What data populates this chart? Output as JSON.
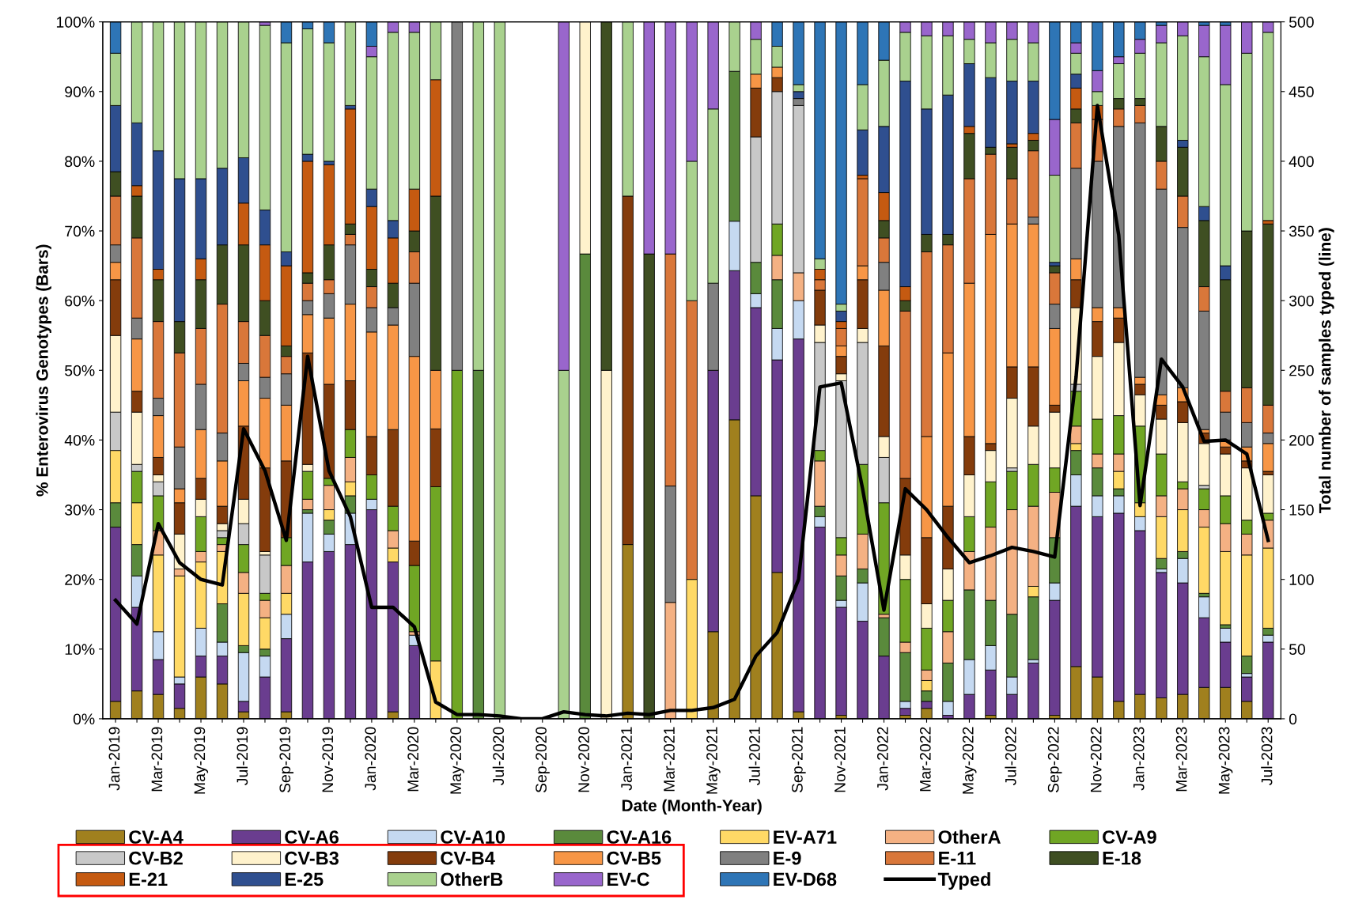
{
  "chart_data": {
    "type": "bar",
    "stacked": true,
    "xlabel": "Date (Month-Year)",
    "ylabel": "% Enterovirus Genotypes (Bars)",
    "y2label": "Total number of samples typed (line)",
    "categories": [
      "Jan-2019",
      null,
      "Mar-2019",
      null,
      "May-2019",
      null,
      "Jul-2019",
      null,
      "Sep-2019",
      null,
      "Nov-2019",
      null,
      "Jan-2020",
      null,
      "Mar-2020",
      null,
      "May-2020",
      null,
      "Jul-2020",
      null,
      "Sep-2020",
      null,
      "Nov-2020",
      null,
      "Jan-2021",
      null,
      "Mar-2021",
      null,
      "May-2021",
      null,
      "Jul-2021",
      null,
      "Sep-2021",
      null,
      "Nov-2021",
      null,
      "Jan-2022",
      null,
      "Mar-2022",
      null,
      "May-2022",
      null,
      "Jul-2022",
      null,
      "Sep-2022",
      null,
      "Nov-2022",
      null,
      "Jan-2023",
      null,
      "Mar-2023",
      null,
      "May-2023",
      null,
      "Jul-2023"
    ],
    "ylim": [
      0,
      100
    ],
    "yticks": [
      {
        "value": 0,
        "label": "0%"
      },
      {
        "value": 10,
        "label": "10%"
      },
      {
        "value": 20,
        "label": "20%"
      },
      {
        "value": 30,
        "label": "30%"
      },
      {
        "value": 40,
        "label": "40%"
      },
      {
        "value": 50,
        "label": "50%"
      },
      {
        "value": 60,
        "label": "60%"
      },
      {
        "value": 70,
        "label": "70%"
      },
      {
        "value": 80,
        "label": "80%"
      },
      {
        "value": 90,
        "label": "90%"
      },
      {
        "value": 100,
        "label": "100%"
      }
    ],
    "y2lim": [
      0,
      500
    ],
    "y2ticks": [
      0,
      50,
      100,
      150,
      200,
      250,
      300,
      350,
      400,
      450,
      500
    ],
    "legend": "bottom",
    "grid": false,
    "series": [
      {
        "name": "CV-A4",
        "color": "#a0801e",
        "values": [
          2.5,
          4,
          3.5,
          1.5,
          6,
          5,
          1,
          0,
          1,
          0,
          0,
          0,
          0,
          1,
          0,
          0,
          0,
          0,
          0,
          0,
          0,
          0,
          0,
          0,
          25,
          0,
          0,
          0,
          12.5,
          42.9,
          32,
          21,
          1,
          0,
          0.5,
          0,
          0,
          0.5,
          1.5,
          0,
          0,
          0.5,
          0,
          0,
          0.5,
          7.5,
          6,
          2.5,
          3.5,
          3,
          3.5,
          4.5,
          4.5,
          2.5,
          0
        ]
      },
      {
        "name": "CV-A6",
        "color": "#6a3d8f",
        "values": [
          25,
          12,
          5,
          3.5,
          3,
          4,
          1.5,
          6,
          10.5,
          22.5,
          24,
          25,
          30,
          21.5,
          10.5,
          0,
          0,
          0,
          0,
          0,
          0,
          0,
          0,
          0,
          0,
          0,
          0,
          0,
          37.5,
          21.4,
          27,
          30.5,
          53.5,
          27.5,
          15.5,
          14,
          9,
          1,
          1,
          0.5,
          3.5,
          6.5,
          3.5,
          8,
          16.5,
          23,
          23,
          27,
          23.5,
          18,
          16,
          10,
          6.5,
          3.5,
          11
        ]
      },
      {
        "name": "CV-A10",
        "color": "#c5d9f1",
        "values": [
          0,
          4.5,
          4,
          1,
          4,
          2,
          7,
          3,
          3.5,
          7,
          2.5,
          4.5,
          1.5,
          0,
          1.5,
          0,
          0,
          0,
          0,
          0,
          0,
          0,
          0,
          0,
          0,
          0,
          0,
          0,
          0,
          7.1,
          2,
          4.5,
          5.5,
          1.5,
          1,
          5.5,
          0,
          1,
          0,
          2,
          5,
          3.5,
          2.5,
          0.5,
          2.5,
          4.5,
          3,
          2.5,
          2,
          0.5,
          3.5,
          3,
          2,
          0.5,
          1
        ]
      },
      {
        "name": "CV-A16",
        "color": "#5a8a3c",
        "values": [
          3.5,
          4.5,
          0,
          0,
          0,
          5.5,
          1,
          1,
          0,
          0.5,
          2,
          2.5,
          0,
          0,
          0,
          0,
          0,
          50,
          0,
          0,
          0,
          0,
          66.7,
          0,
          0,
          0,
          0,
          0,
          0,
          21.5,
          4.5,
          7,
          0,
          1.5,
          3.5,
          2,
          5.5,
          7,
          1.5,
          5.5,
          10,
          6.5,
          9,
          9,
          6.5,
          3.5,
          4,
          1,
          0,
          1.5,
          1,
          0.5,
          0.5,
          2.5,
          1
        ]
      },
      {
        "name": "EV-A71",
        "color": "#ffd966",
        "values": [
          7.5,
          6,
          11,
          14.5,
          9.5,
          7.5,
          7.5,
          4.5,
          3,
          0,
          1.5,
          2,
          0,
          2,
          0,
          8.3,
          0,
          0,
          0,
          0,
          0,
          0,
          0,
          0,
          0,
          0,
          0,
          20,
          0,
          0,
          0,
          0,
          0,
          0,
          0,
          0,
          0,
          0,
          1.5,
          0,
          0,
          0,
          0,
          1.5,
          0,
          1,
          0,
          2.5,
          2,
          6,
          6,
          9.5,
          10.5,
          14.5,
          11.5
        ]
      },
      {
        "name": "OtherA",
        "color": "#f4b183",
        "values": [
          0,
          0,
          3.5,
          1,
          1.5,
          1,
          3,
          2.5,
          4,
          1.5,
          3.5,
          3.5,
          0,
          2.5,
          0.5,
          0,
          0,
          0,
          0,
          0,
          0,
          0,
          0,
          0,
          0,
          0,
          16.7,
          0,
          0,
          0,
          0,
          3.5,
          4,
          6.5,
          3,
          5,
          0.5,
          1.5,
          1.5,
          4.5,
          5.5,
          10.5,
          15,
          11.5,
          6.5,
          2.5,
          2,
          2.5,
          0,
          3,
          3,
          2.5,
          4,
          3,
          4
        ]
      },
      {
        "name": "CV-A9",
        "color": "#70a624",
        "values": [
          0,
          4.5,
          5,
          0,
          5,
          1,
          4,
          1,
          4,
          4,
          1,
          4,
          3.5,
          3.5,
          9.5,
          25,
          50,
          0,
          0,
          0,
          0,
          0,
          0,
          0,
          0,
          0,
          0,
          0,
          0,
          0,
          0,
          4.5,
          0,
          1.5,
          2.5,
          10,
          16,
          9,
          6,
          4.5,
          5,
          6.5,
          5.5,
          6,
          3.5,
          5,
          5,
          5.5,
          11,
          6,
          1,
          3,
          4,
          2,
          1
        ]
      },
      {
        "name": "CV-B2",
        "color": "#c8c8c8",
        "values": [
          5.5,
          1,
          2,
          0,
          0,
          1,
          3,
          5.5,
          0,
          0,
          0,
          0,
          0,
          0,
          0,
          0,
          0,
          0,
          0,
          0,
          0,
          0,
          0,
          0,
          0,
          0,
          0,
          0,
          0,
          0,
          18,
          19,
          24,
          15.5,
          22.5,
          17.5,
          6.5,
          0,
          0,
          0,
          0,
          0,
          0.5,
          0,
          0,
          1,
          0,
          0,
          0,
          0,
          0,
          0.5,
          0,
          0,
          0
        ]
      },
      {
        "name": "CV-B3",
        "color": "#fff2cc",
        "values": [
          11,
          7.5,
          1,
          5,
          2.5,
          1,
          3.5,
          0.5,
          0,
          1,
          0,
          0,
          0,
          0,
          0,
          0,
          0,
          0,
          0,
          0,
          0,
          0,
          33.3,
          50,
          0,
          0,
          0,
          0,
          0,
          0,
          0,
          0,
          0,
          2.5,
          1,
          2,
          3,
          3.5,
          3.5,
          4.5,
          6,
          4.5,
          10,
          5.5,
          8,
          11,
          9,
          10.5,
          4.5,
          5,
          8.5,
          6,
          6,
          7.5,
          5.5
        ]
      },
      {
        "name": "CV-B4",
        "color": "#843c0c",
        "values": [
          8,
          3,
          2.5,
          4.5,
          3,
          2.5,
          10.5,
          12,
          11,
          16,
          13.5,
          7,
          5.5,
          11,
          3.5,
          8.3,
          0,
          0,
          0,
          0,
          0,
          0,
          0,
          0,
          50,
          0,
          0,
          0,
          0,
          0,
          7,
          2,
          0,
          5,
          2.5,
          7,
          13,
          11,
          9.5,
          9,
          5.5,
          1,
          4.5,
          8.5,
          1,
          4,
          5,
          3.5,
          1.5,
          2,
          3,
          1.5,
          1,
          1,
          0.5
        ]
      },
      {
        "name": "CV-B5",
        "color": "#f79646",
        "values": [
          2.5,
          7.5,
          6,
          2,
          7,
          6.5,
          6.5,
          10,
          8,
          5.5,
          9.5,
          11,
          15,
          15,
          26.5,
          8.4,
          0,
          0,
          0,
          0,
          0,
          0,
          0,
          0,
          0,
          0,
          0,
          0,
          0,
          0,
          2,
          1.5,
          0,
          0,
          1.5,
          2,
          8,
          0,
          14.5,
          22,
          22,
          30,
          20.5,
          20.5,
          11,
          3,
          2,
          1.5,
          1,
          1.5,
          2,
          0.5,
          1,
          2,
          4
        ]
      },
      {
        "name": "E-9",
        "color": "#808080",
        "values": [
          2.5,
          3,
          2.5,
          6,
          6.5,
          4,
          2.5,
          3,
          4.5,
          2,
          3.5,
          8.5,
          3.5,
          2.5,
          10.5,
          0,
          50,
          0,
          0,
          0,
          0,
          0,
          0,
          0,
          0,
          0,
          16.7,
          0,
          12.5,
          0,
          0,
          0,
          1,
          0,
          0,
          0,
          4,
          0,
          0,
          0,
          0,
          0,
          0,
          1,
          3.5,
          13,
          21,
          26,
          36.5,
          29.5,
          23,
          17,
          4,
          3.5,
          1.5
        ]
      },
      {
        "name": "E-11",
        "color": "#d9773a",
        "values": [
          7,
          11.5,
          11,
          13.5,
          8,
          18.5,
          6,
          6,
          2.5,
          2.5,
          2,
          1.5,
          3,
          0,
          4.5,
          0,
          0,
          0,
          0,
          0,
          0,
          0,
          0,
          0,
          0,
          0,
          33.3,
          40,
          0,
          0,
          0,
          0,
          0,
          1.5,
          2.5,
          12.5,
          3.5,
          24,
          26.5,
          15.5,
          15,
          11.5,
          6.5,
          9.5,
          4.5,
          6.5,
          6,
          2.5,
          2.5,
          4,
          4.5,
          3.5,
          3,
          5,
          4
        ]
      },
      {
        "name": "E-18",
        "color": "#3f4f22",
        "values": [
          3.5,
          6,
          6,
          4.5,
          7,
          8.5,
          11,
          5,
          1.5,
          1.5,
          5,
          1.5,
          2.5,
          3.5,
          3,
          25,
          0,
          0,
          0,
          0,
          0,
          0,
          0,
          50,
          0,
          66.7,
          0,
          0,
          0,
          0,
          0,
          0,
          0,
          0,
          0,
          0,
          2.5,
          1.5,
          2.5,
          1.5,
          6.5,
          1,
          4.5,
          1.5,
          1,
          2,
          0,
          1.5,
          1,
          5,
          7,
          9.5,
          16,
          22.5,
          26
        ]
      },
      {
        "name": "E-21",
        "color": "#c55a11",
        "values": [
          0,
          1.5,
          1.5,
          0,
          3,
          0,
          6,
          8,
          11.5,
          16,
          11.5,
          16.5,
          9,
          6.5,
          6,
          16.7,
          0,
          0,
          0,
          0,
          0,
          0,
          0,
          0,
          0,
          0,
          0,
          0,
          0,
          0,
          0,
          0,
          0,
          1.5,
          1,
          0.5,
          4,
          2,
          0,
          0,
          1,
          0,
          0.5,
          1,
          0,
          3,
          2,
          0,
          0,
          0,
          0,
          0,
          0,
          0,
          0.5
        ]
      },
      {
        "name": "E-25",
        "color": "#2f4f8f",
        "values": [
          9.5,
          9,
          17,
          20.5,
          11.5,
          11,
          6.5,
          5,
          2,
          1,
          0.5,
          0.5,
          2.5,
          2.5,
          0,
          0,
          0,
          0,
          0,
          0,
          0,
          0,
          0,
          0,
          0,
          0,
          0,
          0,
          0,
          0,
          0,
          0,
          1,
          0,
          1.5,
          6.5,
          9.5,
          29.5,
          18,
          20,
          9,
          10,
          9,
          7.5,
          0.5,
          2,
          0,
          0,
          0,
          0,
          1,
          2,
          2,
          0,
          0
        ]
      },
      {
        "name": "OtherB",
        "color": "#a9d18e",
        "values": [
          7.5,
          14.5,
          18.5,
          22.5,
          22.5,
          21,
          19.5,
          26.5,
          30,
          18,
          17,
          12,
          19,
          27,
          22.5,
          8.3,
          0,
          50,
          100,
          0,
          0,
          50,
          0,
          0,
          25,
          0,
          0,
          20,
          25,
          7.1,
          5,
          3,
          1,
          1.5,
          1,
          6.5,
          9.5,
          7,
          10.5,
          8.5,
          3.5,
          5,
          6,
          5.5,
          12.5,
          3,
          2,
          5,
          6.5,
          12,
          15,
          21.5,
          26,
          25.5,
          27
        ]
      },
      {
        "name": "EV-C",
        "color": "#9966cc",
        "values": [
          0,
          0,
          0,
          0,
          0,
          0,
          0,
          0.5,
          0,
          0,
          0,
          0,
          1.5,
          1.5,
          1.5,
          0,
          0,
          0,
          0,
          0,
          0,
          50,
          0,
          0,
          0,
          33.3,
          33.3,
          20,
          12.5,
          0,
          2.5,
          0,
          0,
          0,
          0,
          0,
          0,
          1.5,
          2,
          2,
          2.5,
          3,
          2.5,
          3,
          8,
          1.5,
          3,
          1,
          2,
          2.5,
          2,
          4.5,
          8.5,
          4.5,
          1.5
        ]
      },
      {
        "name": "EV-D68",
        "color": "#2e75b6",
        "values": [
          4.5,
          0,
          0,
          0,
          0,
          0,
          0,
          0,
          3,
          1,
          3,
          0,
          3.5,
          0,
          0,
          0,
          0,
          0,
          0,
          0,
          0,
          0,
          0,
          0,
          0,
          0,
          0,
          0,
          0,
          0,
          0,
          3.5,
          9,
          34,
          40.5,
          9,
          5.5,
          0,
          0,
          0,
          0,
          0,
          0,
          0,
          14,
          3,
          7,
          5,
          2.5,
          0.5,
          0,
          0.5,
          0.5,
          0,
          0
        ]
      },
      {
        "name": "Typed",
        "type": "line",
        "axis": "y2",
        "color": "#000000",
        "values": [
          85,
          68,
          140,
          112,
          100,
          96,
          208,
          178,
          128,
          260,
          178,
          145,
          80,
          80,
          66,
          12,
          3,
          3,
          2,
          0,
          0,
          5,
          3,
          2,
          4,
          3,
          6,
          6,
          8,
          14,
          45,
          62,
          100,
          238,
          241,
          165,
          78,
          165,
          150,
          130,
          112,
          117,
          123,
          120,
          116,
          245,
          440,
          347,
          153,
          258,
          238,
          199,
          200,
          190,
          128
        ]
      }
    ]
  }
}
